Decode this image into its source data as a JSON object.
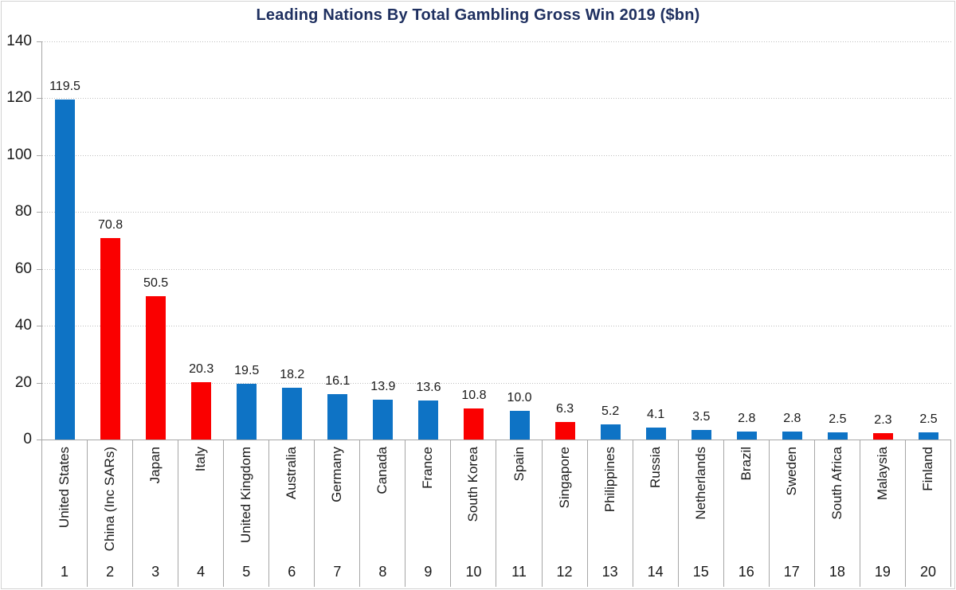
{
  "chart_data": {
    "type": "bar",
    "title": "Leading Nations By Total Gambling Gross Win 2019 ($bn)",
    "xlabel": "",
    "ylabel": "",
    "ylim": [
      0,
      140
    ],
    "yticks": [
      0,
      20,
      40,
      60,
      80,
      100,
      120,
      140
    ],
    "grid": true,
    "legend": false,
    "categories": [
      "United States",
      "China (Inc SARs)",
      "Japan",
      "Italy",
      "United Kingdom",
      "Australia",
      "Germany",
      "Canada",
      "France",
      "South Korea",
      "Spain",
      "Singapore",
      "Philippines",
      "Russia",
      "Netherlands",
      "Brazil",
      "Sweden",
      "South Africa",
      "Malaysia",
      "Finland"
    ],
    "ranks": [
      "1",
      "2",
      "3",
      "4",
      "5",
      "6",
      "7",
      "8",
      "9",
      "10",
      "11",
      "12",
      "13",
      "14",
      "15",
      "16",
      "17",
      "18",
      "19",
      "20"
    ],
    "values": [
      119.5,
      70.8,
      50.5,
      20.3,
      19.5,
      18.2,
      16.1,
      13.9,
      13.6,
      10.8,
      10.0,
      6.3,
      5.2,
      4.1,
      3.5,
      2.8,
      2.8,
      2.5,
      2.3,
      2.5
    ],
    "value_labels": [
      "119.5",
      "70.8",
      "50.5",
      "20.3",
      "19.5",
      "18.2",
      "16.1",
      "13.9",
      "13.6",
      "10.8",
      "10.0",
      "6.3",
      "5.2",
      "4.1",
      "3.5",
      "2.8",
      "2.8",
      "2.5",
      "2.3",
      "2.5"
    ],
    "bar_colors": [
      "blue",
      "red",
      "red",
      "red",
      "blue",
      "blue",
      "blue",
      "blue",
      "blue",
      "red",
      "blue",
      "red",
      "blue",
      "blue",
      "blue",
      "blue",
      "blue",
      "blue",
      "red",
      "blue"
    ]
  },
  "palette": {
    "blue": "#0E73C5",
    "red": "#FA0000",
    "title_navy": "#1F3060",
    "grid_gray": "#bdbdbd",
    "axis_gray": "#a6a6a6",
    "text_black": "#1a1a1a"
  }
}
